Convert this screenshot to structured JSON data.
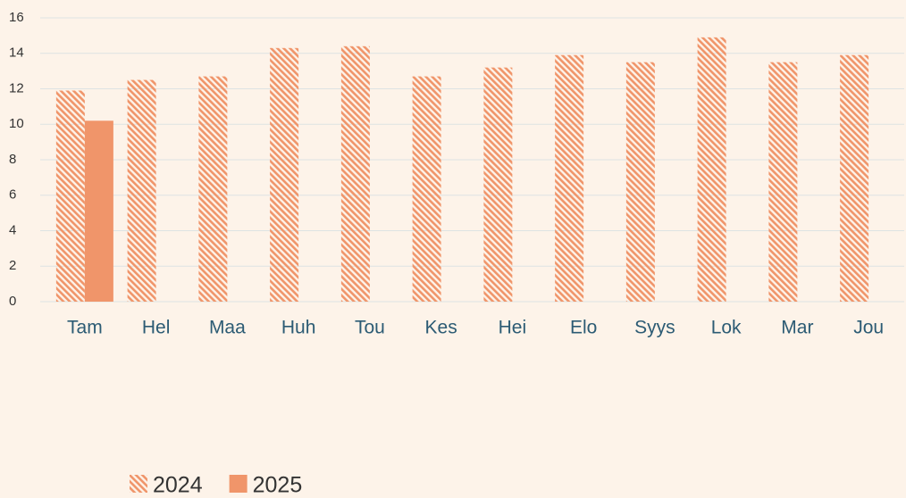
{
  "chart_data": {
    "type": "bar",
    "categories": [
      "Tam",
      "Hel",
      "Maa",
      "Huh",
      "Tou",
      "Kes",
      "Hei",
      "Elo",
      "Syys",
      "Lok",
      "Mar",
      "Jou"
    ],
    "series": [
      {
        "name": "2024",
        "color": "#f0956a",
        "pattern": "hatch",
        "values": [
          11.9,
          12.5,
          12.7,
          14.3,
          14.4,
          12.7,
          13.2,
          13.9,
          13.5,
          14.9,
          13.5,
          13.9
        ]
      },
      {
        "name": "2025",
        "color": "#f0956a",
        "pattern": "solid",
        "values": [
          10.2,
          null,
          null,
          null,
          null,
          null,
          null,
          null,
          null,
          null,
          null,
          null
        ]
      }
    ],
    "ylim": [
      0,
      16
    ],
    "yticks": [
      0,
      2,
      4,
      6,
      8,
      10,
      12,
      14,
      16
    ],
    "grid": true,
    "legend": "bottom"
  }
}
